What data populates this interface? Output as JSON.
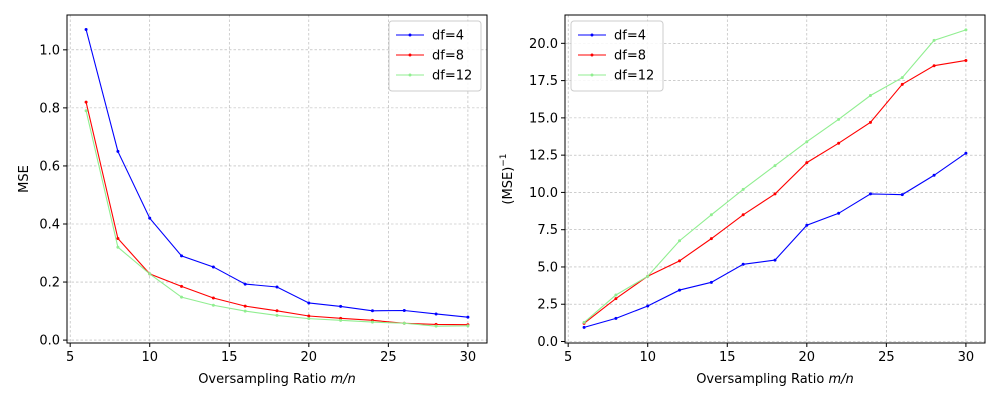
{
  "chart_data": [
    {
      "type": "line",
      "title": "",
      "xlabel": "Oversampling Ratio",
      "xlabel_math": "m/n",
      "ylabel": "MSE",
      "ylabel_sup": "",
      "xlim": [
        4.8,
        31.2
      ],
      "ylim": [
        -0.01,
        1.12
      ],
      "xticks": [
        5,
        10,
        15,
        20,
        25,
        30
      ],
      "yticks": [
        0.0,
        0.2,
        0.4,
        0.6,
        0.8,
        1.0
      ],
      "xtick_labels": [
        "5",
        "10",
        "15",
        "20",
        "25",
        "30"
      ],
      "ytick_labels": [
        "0.0",
        "0.2",
        "0.4",
        "0.6",
        "0.8",
        "1.0"
      ],
      "grid": true,
      "legend_position": "top-right",
      "x": [
        6,
        8,
        10,
        12,
        14,
        16,
        18,
        20,
        22,
        24,
        26,
        28,
        30
      ],
      "series": [
        {
          "name": "df=4",
          "color": "#0000ff",
          "values": [
            1.07,
            0.65,
            0.42,
            0.29,
            0.252,
            0.193,
            0.183,
            0.128,
            0.116,
            0.101,
            0.102,
            0.09,
            0.079
          ]
        },
        {
          "name": "df=8",
          "color": "#ff0000",
          "values": [
            0.82,
            0.35,
            0.228,
            0.185,
            0.145,
            0.117,
            0.101,
            0.083,
            0.075,
            0.068,
            0.058,
            0.054,
            0.053
          ]
        },
        {
          "name": "df=12",
          "color": "#90ee90",
          "values": [
            0.79,
            0.32,
            0.228,
            0.148,
            0.12,
            0.1,
            0.085,
            0.074,
            0.068,
            0.062,
            0.058,
            0.048,
            0.049
          ]
        }
      ]
    },
    {
      "type": "line",
      "title": "",
      "xlabel": "Oversampling Ratio",
      "xlabel_math": "m/n",
      "ylabel": "(MSE)",
      "ylabel_sup": "−1",
      "xlim": [
        4.8,
        31.2
      ],
      "ylim": [
        -0.1,
        21.9
      ],
      "xticks": [
        5,
        10,
        15,
        20,
        25,
        30
      ],
      "yticks": [
        0.0,
        2.5,
        5.0,
        7.5,
        10.0,
        12.5,
        15.0,
        17.5,
        20.0
      ],
      "xtick_labels": [
        "5",
        "10",
        "15",
        "20",
        "25",
        "30"
      ],
      "ytick_labels": [
        "0.0",
        "2.5",
        "5.0",
        "7.5",
        "10.0",
        "12.5",
        "15.0",
        "17.5",
        "20.0"
      ],
      "grid": true,
      "legend_position": "top-left",
      "x": [
        6,
        8,
        10,
        12,
        14,
        16,
        18,
        20,
        22,
        24,
        26,
        28,
        30
      ],
      "series": [
        {
          "name": "df=4",
          "color": "#0000ff",
          "values": [
            0.95,
            1.55,
            2.38,
            3.45,
            3.97,
            5.18,
            5.46,
            7.8,
            8.6,
            9.9,
            9.85,
            11.15,
            12.63
          ]
        },
        {
          "name": "df=8",
          "color": "#ff0000",
          "values": [
            1.22,
            2.88,
            4.38,
            5.41,
            6.9,
            8.5,
            9.9,
            12.0,
            13.3,
            14.7,
            17.25,
            18.5,
            18.85
          ]
        },
        {
          "name": "df=12",
          "color": "#90ee90",
          "values": [
            1.28,
            3.12,
            4.38,
            6.76,
            8.5,
            10.2,
            11.8,
            13.4,
            14.9,
            16.5,
            17.7,
            20.2,
            20.9
          ]
        }
      ]
    }
  ]
}
